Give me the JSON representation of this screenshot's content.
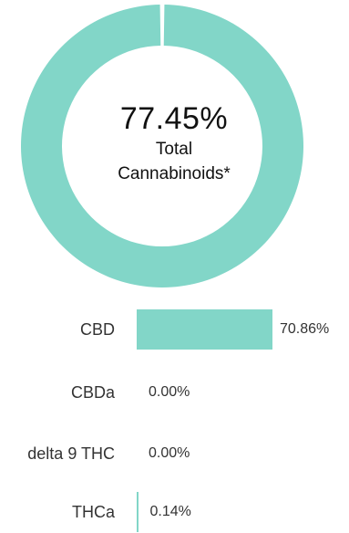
{
  "chart_data": [
    {
      "type": "pie",
      "donut": true,
      "center_value": "77.45%",
      "center_label_line1": "Total",
      "center_label_line2": "Cannabinoids*",
      "values": [
        77.45
      ],
      "color": "#82d6c8"
    },
    {
      "type": "bar",
      "orientation": "horizontal",
      "categories": [
        "CBD",
        "CBDa",
        "delta 9 THC",
        "THCa"
      ],
      "values": [
        70.86,
        0.0,
        0.0,
        0.14
      ],
      "value_labels": [
        "70.86%",
        "0.00%",
        "0.00%",
        "0.14%"
      ],
      "color": "#82d6c8"
    }
  ]
}
